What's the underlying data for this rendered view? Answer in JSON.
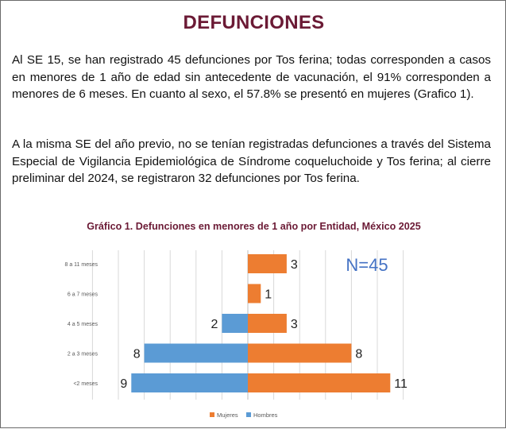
{
  "document": {
    "title": "DEFUNCIONES",
    "paragraphs": [
      "Al SE 15, se han registrado 45 defunciones por Tos ferina; todas corresponden a casos en menores de 1 año de edad sin antecedente de vacunación, el 91% corresponden a menores de 6 meses. En cuanto al sexo, el 57.8% se presentó en mujeres (Grafico 1).",
      "A la misma SE del año previo, no se tenían registradas defunciones a través del Sistema Especial de Vigilancia Epidemiológica de Síndrome coqueluchoide y Tos ferina; al cierre preliminar del 2024, se registraron 32 defunciones por Tos ferina."
    ]
  },
  "chart_data": {
    "type": "bar",
    "orientation": "horizontal",
    "title": "Gráfico 1. Defunciones en menores de 1 año por Entidad, México 2025",
    "annotation": "N=45",
    "categories": [
      "8 a 11 meses",
      "6 a 7 meses",
      "4 a 5 meses",
      "2 a 3 meses",
      "<2 meses"
    ],
    "series": [
      {
        "name": "Mujeres",
        "values": [
          3,
          1,
          3,
          8,
          11
        ],
        "color": "#ed7d31",
        "direction": "right"
      },
      {
        "name": "Hombres",
        "values": [
          0,
          0,
          2,
          8,
          9
        ],
        "color": "#5b9bd5",
        "direction": "left"
      }
    ],
    "xlim": [
      -12,
      12
    ],
    "grid": true,
    "legend": "bottom-center",
    "colors": {
      "annotation": "#4472c4",
      "title": "#6b1a35"
    }
  }
}
